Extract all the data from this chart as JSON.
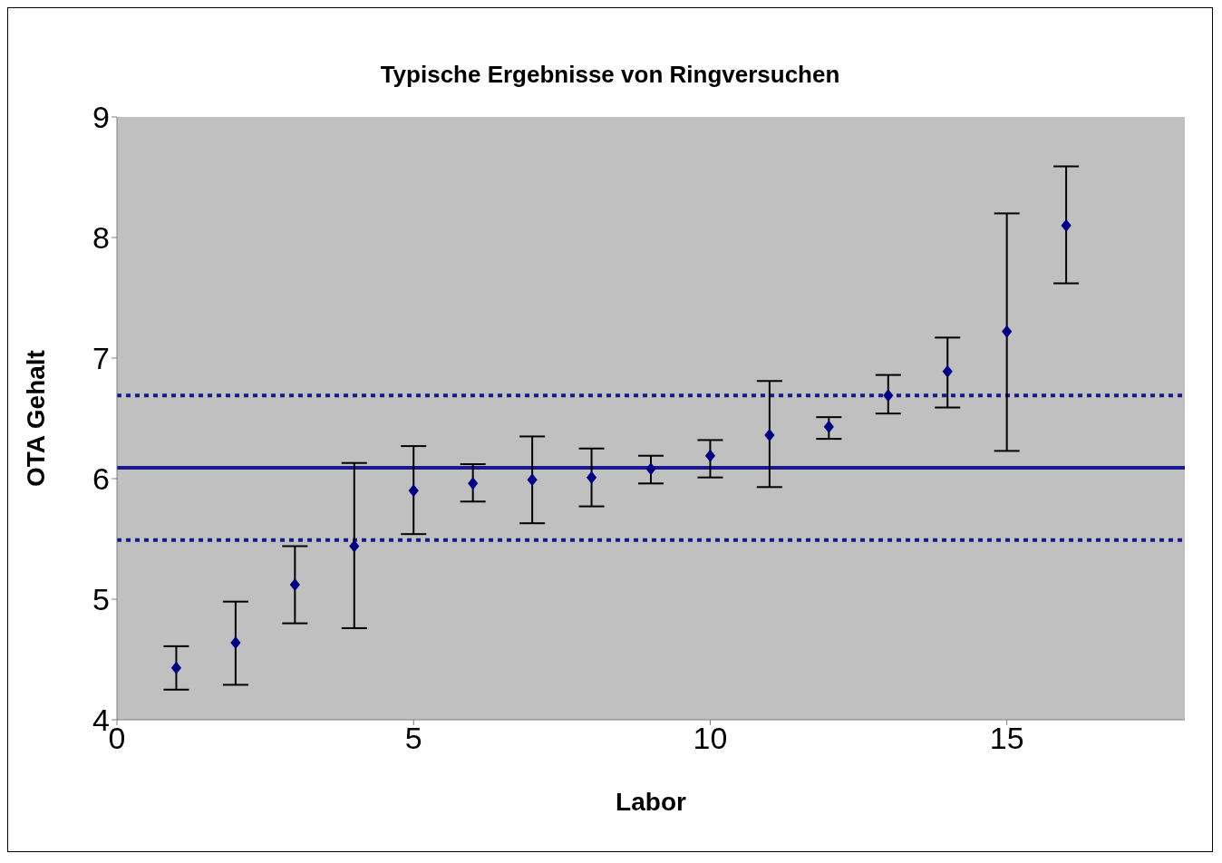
{
  "chart_data": {
    "type": "scatter",
    "title": "Typische Ergebnisse von Ringversuchen",
    "xlabel": "Labor",
    "ylabel": "OTA  Gehalt",
    "x": [
      1,
      2,
      3,
      4,
      5,
      6,
      7,
      8,
      9,
      10,
      11,
      12,
      13,
      14,
      15,
      16
    ],
    "series": [
      {
        "color": "#000080",
        "values": [
          4.43,
          4.64,
          5.12,
          5.44,
          5.9,
          5.96,
          5.99,
          6.01,
          6.08,
          6.19,
          6.36,
          6.43,
          6.69,
          6.89,
          7.22,
          8.1
        ],
        "errors": [
          [
            4.25,
            4.61
          ],
          [
            4.29,
            4.98
          ],
          [
            4.8,
            5.44
          ],
          [
            4.76,
            6.13
          ],
          [
            5.54,
            6.27
          ],
          [
            5.81,
            6.12
          ],
          [
            5.63,
            6.35
          ],
          [
            5.77,
            6.25
          ],
          [
            5.96,
            6.19
          ],
          [
            6.01,
            6.32
          ],
          [
            5.93,
            6.81
          ],
          [
            6.33,
            6.51
          ],
          [
            6.54,
            6.86
          ],
          [
            6.59,
            7.17
          ],
          [
            6.23,
            8.2
          ],
          [
            7.62,
            8.59
          ]
        ]
      }
    ],
    "marker": "diamond",
    "xlim": [
      0,
      18
    ],
    "xticks": [
      0,
      5,
      10,
      15
    ],
    "ylim": [
      4,
      9
    ],
    "yticks": [
      4,
      5,
      6,
      7,
      8,
      9
    ],
    "grid": false,
    "legend": false,
    "ref_lines": [
      {
        "axis": "y",
        "value": 6.09,
        "color": "#1a1a8c",
        "line_style": "solid"
      },
      {
        "axis": "y",
        "value": 6.69,
        "color": "#1a1a8c",
        "line_style": "dotted"
      },
      {
        "axis": "y",
        "value": 5.49,
        "color": "#1a1a8c",
        "line_style": "dotted"
      }
    ]
  }
}
